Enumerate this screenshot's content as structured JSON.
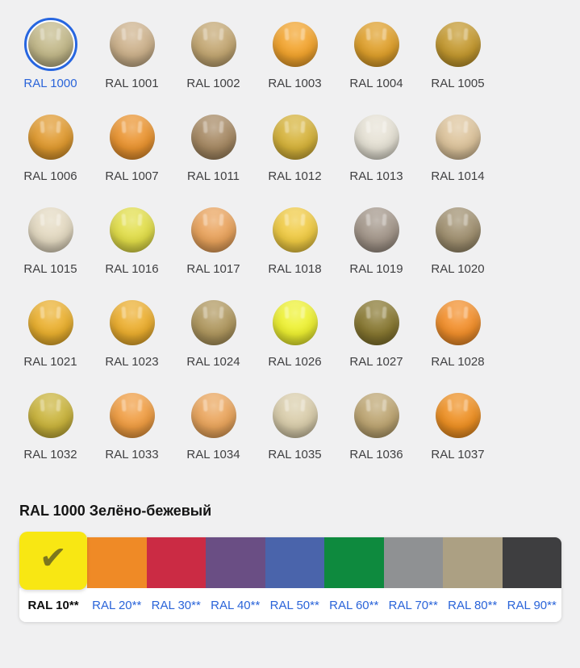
{
  "page": {
    "background": "#f0f0f1",
    "link_color": "#2a64d9",
    "label_color": "#3f3f41",
    "selection_ring_color": "#2766e0"
  },
  "selected_color": {
    "code": "RAL 1000",
    "name_ru": "Зелёно-бежевый",
    "heading": "RAL 1000 Зелёно-бежевый"
  },
  "palette_grid": {
    "columns": 6,
    "items": [
      {
        "code": "RAL 1000",
        "hex": "#c3b98a",
        "selected": true
      },
      {
        "code": "RAL 1001",
        "hex": "#cdb28c",
        "selected": false
      },
      {
        "code": "RAL 1002",
        "hex": "#c4a873",
        "selected": false
      },
      {
        "code": "RAL 1003",
        "hex": "#f3a42d",
        "selected": false
      },
      {
        "code": "RAL 1004",
        "hex": "#dfa02b",
        "selected": false
      },
      {
        "code": "RAL 1005",
        "hex": "#c4992f",
        "selected": false
      },
      {
        "code": "RAL 1006",
        "hex": "#e09a2f",
        "selected": false
      },
      {
        "code": "RAL 1007",
        "hex": "#ea9430",
        "selected": false
      },
      {
        "code": "RAL 1011",
        "hex": "#a68963",
        "selected": false
      },
      {
        "code": "RAL 1012",
        "hex": "#d6b33a",
        "selected": false
      },
      {
        "code": "RAL 1013",
        "hex": "#e6e2d5",
        "selected": false
      },
      {
        "code": "RAL 1014",
        "hex": "#ddc49c",
        "selected": false
      },
      {
        "code": "RAL 1015",
        "hex": "#e4dac2",
        "selected": false
      },
      {
        "code": "RAL 1016",
        "hex": "#e2de49",
        "selected": false
      },
      {
        "code": "RAL 1017",
        "hex": "#e9a35c",
        "selected": false
      },
      {
        "code": "RAL 1018",
        "hex": "#f0cb43",
        "selected": false
      },
      {
        "code": "RAL 1019",
        "hex": "#a3968a",
        "selected": false
      },
      {
        "code": "RAL 1020",
        "hex": "#a09070",
        "selected": false
      },
      {
        "code": "RAL 1021",
        "hex": "#eab02e",
        "selected": false
      },
      {
        "code": "RAL 1023",
        "hex": "#ecae2e",
        "selected": false
      },
      {
        "code": "RAL 1024",
        "hex": "#b0985f",
        "selected": false
      },
      {
        "code": "RAL 1026",
        "hex": "#eef131",
        "selected": false
      },
      {
        "code": "RAL 1027",
        "hex": "#887831",
        "selected": false
      },
      {
        "code": "RAL 1028",
        "hex": "#f28f2b",
        "selected": false
      },
      {
        "code": "RAL 1032",
        "hex": "#cab43c",
        "selected": false
      },
      {
        "code": "RAL 1033",
        "hex": "#f09d42",
        "selected": false
      },
      {
        "code": "RAL 1034",
        "hex": "#eaa55c",
        "selected": false
      },
      {
        "code": "RAL 1035",
        "hex": "#d9cdab",
        "selected": false
      },
      {
        "code": "RAL 1036",
        "hex": "#bda572",
        "selected": false
      },
      {
        "code": "RAL 1037",
        "hex": "#ee9023",
        "selected": false
      }
    ]
  },
  "category_bar": {
    "checkmark": "✔",
    "items": [
      {
        "label": "RAL 10**",
        "hex": "#f8e713",
        "selected": true
      },
      {
        "label": "RAL 20**",
        "hex": "#ef8a26",
        "selected": false
      },
      {
        "label": "RAL 30**",
        "hex": "#cb2b44",
        "selected": false
      },
      {
        "label": "RAL 40**",
        "hex": "#6a4e84",
        "selected": false
      },
      {
        "label": "RAL 50**",
        "hex": "#4a64ab",
        "selected": false
      },
      {
        "label": "RAL 60**",
        "hex": "#0e8a3e",
        "selected": false
      },
      {
        "label": "RAL 70**",
        "hex": "#8f9193",
        "selected": false
      },
      {
        "label": "RAL 80**",
        "hex": "#aca083",
        "selected": false
      },
      {
        "label": "RAL 90**",
        "hex": "#3e3e40",
        "selected": false
      }
    ]
  }
}
